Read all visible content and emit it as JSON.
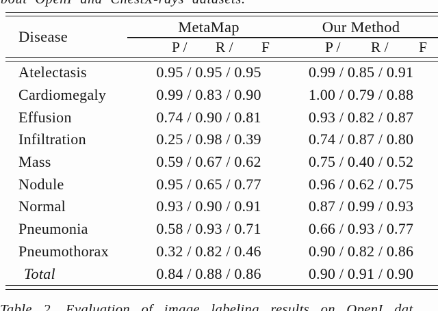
{
  "page": {
    "top_partial_text": "bout OpenI and ChestX-rays datasets.",
    "caption_partial_text": "Table 2. Evaluation of image labeling results on OpenI dat"
  },
  "colors": {
    "background": "#fdfdfd",
    "text": "#161616",
    "rule": "#1c1c1c"
  },
  "table": {
    "disease_header": "Disease",
    "groups": [
      {
        "label": "MetaMap",
        "subcols": [
          "P /",
          "R /",
          "F"
        ]
      },
      {
        "label": "Our Method",
        "subcols": [
          "P /",
          "R /",
          "F"
        ]
      }
    ],
    "rows": [
      {
        "disease": "Atelectasis",
        "metamap": "0.95 / 0.95 / 0.95",
        "our": "0.99 / 0.85 / 0.91"
      },
      {
        "disease": "Cardiomegaly",
        "metamap": "0.99 / 0.83 / 0.90",
        "our": "1.00 / 0.79 / 0.88"
      },
      {
        "disease": "Effusion",
        "metamap": "0.74 / 0.90 / 0.81",
        "our": "0.93 / 0.82 / 0.87"
      },
      {
        "disease": "Infiltration",
        "metamap": "0.25 / 0.98 / 0.39",
        "our": "0.74 / 0.87 / 0.80"
      },
      {
        "disease": "Mass",
        "metamap": "0.59 / 0.67 / 0.62",
        "our": "0.75 / 0.40 / 0.52"
      },
      {
        "disease": "Nodule",
        "metamap": "0.95 / 0.65 / 0.77",
        "our": "0.96 / 0.62 / 0.75"
      },
      {
        "disease": "Normal",
        "metamap": "0.93 / 0.90 / 0.91",
        "our": "0.87 / 0.99 / 0.93"
      },
      {
        "disease": "Pneumonia",
        "metamap": "0.58 / 0.93 / 0.71",
        "our": "0.66 / 0.93 / 0.77"
      },
      {
        "disease": "Pneumothorax",
        "metamap": "0.32 / 0.82 / 0.46",
        "our": "0.90 / 0.82 / 0.86"
      },
      {
        "disease": "Total",
        "metamap": "0.84 / 0.88 / 0.86",
        "our": "0.90 / 0.91 / 0.90"
      }
    ]
  }
}
